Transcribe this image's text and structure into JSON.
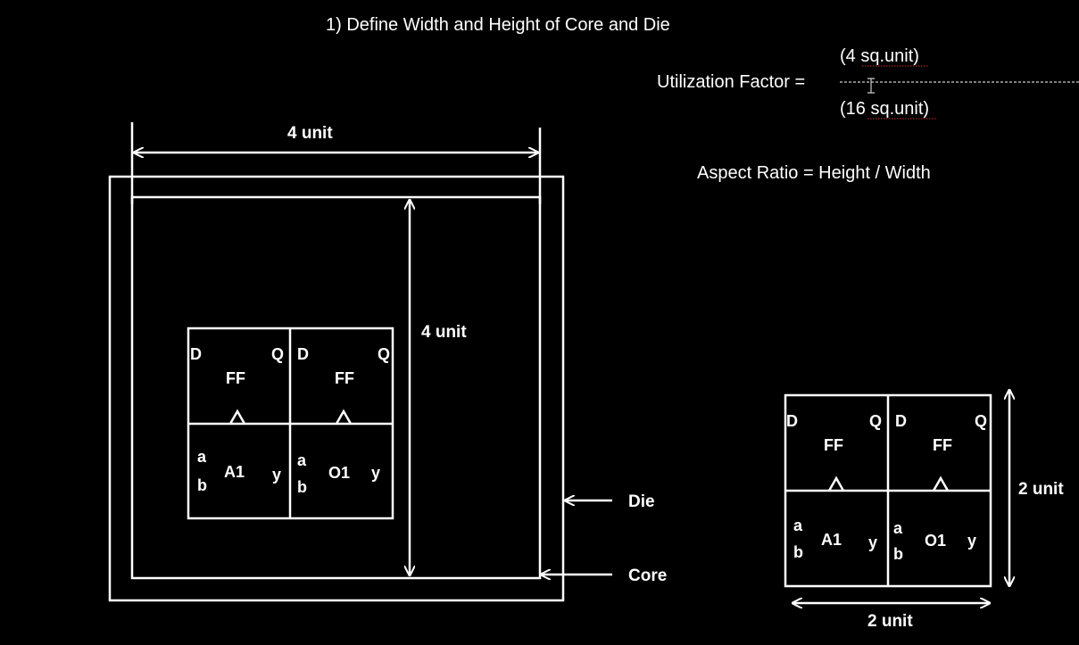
{
  "title": "1) Define Width and Height of Core and Die",
  "utilization": {
    "label": "Utilization Factor =",
    "numerator": "(4 sq.unit)",
    "denominator": "(16 sq.unit)"
  },
  "aspect_ratio": "Aspect Ratio = Height / Width",
  "left_figure": {
    "width_label": "4 unit",
    "height_label": "4 unit",
    "die_label": "Die",
    "core_label": "Core"
  },
  "right_figure": {
    "width_label": "2 unit",
    "height_label": "2 unit"
  },
  "cells": {
    "ff_label": "FF",
    "pin_d": "D",
    "pin_q": "Q",
    "and_label": "A1",
    "or_label": "O1",
    "pin_a": "a",
    "pin_b": "b",
    "pin_y": "y"
  }
}
